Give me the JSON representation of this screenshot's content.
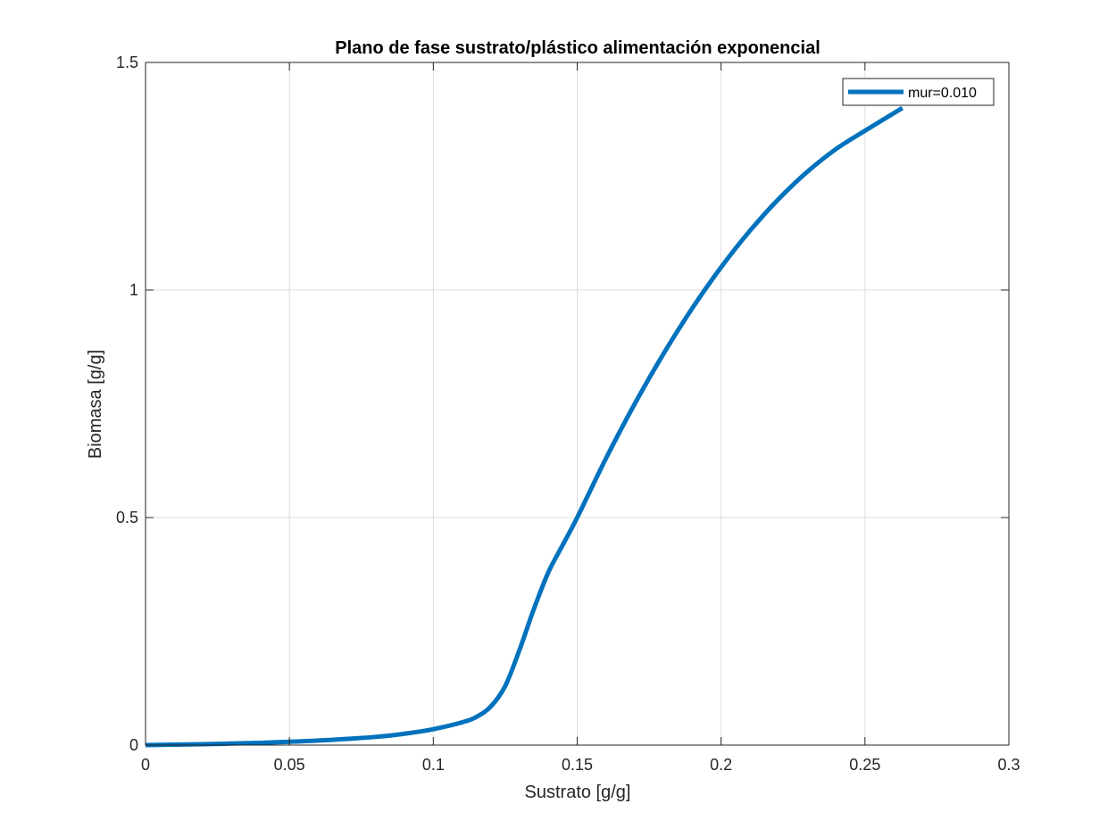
{
  "chart_data": {
    "type": "line",
    "title": "Plano de fase sustrato/plástico alimentación exponencial",
    "xlabel": "Sustrato [g/g]",
    "ylabel": "Biomasa [g/g]",
    "xlim": [
      0,
      0.3
    ],
    "ylim": [
      0,
      1.5
    ],
    "x_ticks": [
      "0",
      "0.05",
      "0.1",
      "0.15",
      "0.2",
      "0.25",
      "0.3"
    ],
    "y_ticks": [
      "0",
      "0.5",
      "1",
      "1.5"
    ],
    "grid": true,
    "legend_position": "top-right",
    "series": [
      {
        "name": "mur=0.010",
        "color": "#0072BD",
        "x": [
          0,
          0.02,
          0.04,
          0.06,
          0.08,
          0.09,
          0.1,
          0.11,
          0.115,
          0.12,
          0.125,
          0.13,
          0.135,
          0.14,
          0.145,
          0.15,
          0.16,
          0.17,
          0.18,
          0.19,
          0.2,
          0.21,
          0.22,
          0.23,
          0.24,
          0.25,
          0.263
        ],
        "y": [
          0,
          0.002,
          0.005,
          0.01,
          0.018,
          0.025,
          0.035,
          0.05,
          0.062,
          0.085,
          0.13,
          0.21,
          0.3,
          0.38,
          0.44,
          0.5,
          0.63,
          0.75,
          0.86,
          0.96,
          1.05,
          1.13,
          1.2,
          1.26,
          1.31,
          1.35,
          1.4
        ]
      }
    ]
  }
}
